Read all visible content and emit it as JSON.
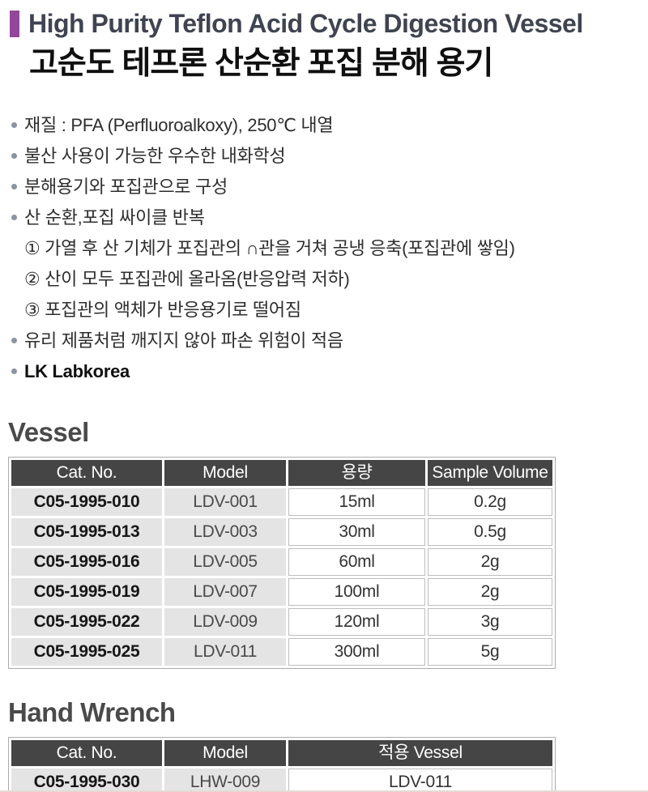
{
  "header": {
    "title_en": "High Purity Teflon Acid Cycle Digestion Vessel",
    "title_ko": "고순도 테프론 산순환 포집 분해 용기"
  },
  "features": {
    "items": [
      {
        "text": "재질 : PFA (Perfluoroalkoxy), 250℃ 내열"
      },
      {
        "text": "불산 사용이 가능한 우수한 내화학성"
      },
      {
        "text": "분해용기와 포집관으로 구성"
      },
      {
        "text": "산 순환,포집 싸이클 반복",
        "substeps": [
          "① 가열 후 산 기체가 포집관의 ∩관을 거쳐 공냉 응축(포집관에 쌓임)",
          "② 산이 모두 포집관에 올라옴(반응압력 저하)",
          "③ 포집관의 액체가 반응용기로 떨어짐"
        ]
      },
      {
        "text": "유리 제품처럼 깨지지 않아 파손 위험이 적음"
      },
      {
        "text": "LK Labkorea",
        "bold": true
      }
    ]
  },
  "vessel_section": {
    "heading": "Vessel",
    "table": {
      "columns": [
        "Cat. No.",
        "Model",
        "용량",
        "Sample Volume"
      ],
      "rows": [
        [
          "C05-1995-010",
          "LDV-001",
          "15ml",
          "0.2g"
        ],
        [
          "C05-1995-013",
          "LDV-003",
          "30ml",
          "0.5g"
        ],
        [
          "C05-1995-016",
          "LDV-005",
          "60ml",
          "2g"
        ],
        [
          "C05-1995-019",
          "LDV-007",
          "100ml",
          "2g"
        ],
        [
          "C05-1995-022",
          "LDV-009",
          "120ml",
          "3g"
        ],
        [
          "C05-1995-025",
          "LDV-011",
          "300ml",
          "5g"
        ]
      ]
    }
  },
  "hand_wrench_section": {
    "heading": "Hand Wrench",
    "table": {
      "columns": [
        "Cat. No.",
        "Model",
        "적용 Vessel"
      ],
      "rows": [
        [
          "C05-1995-030",
          "LHW-009",
          "LDV-011"
        ]
      ]
    }
  },
  "style": {
    "accent_color": "#93479b",
    "title_en_color": "#3f4450",
    "heading_color": "#4a4a4a",
    "bullet_dot_color": "#8b94a1",
    "table_header_bg": "#454545",
    "table_header_text": "#ffffff",
    "table_gray_cell_bg": "#e4e4e4",
    "table_border": "#ababab",
    "white_cell_border": "#bdbdbd",
    "bottom_rule_color": "#e7d9d9"
  }
}
